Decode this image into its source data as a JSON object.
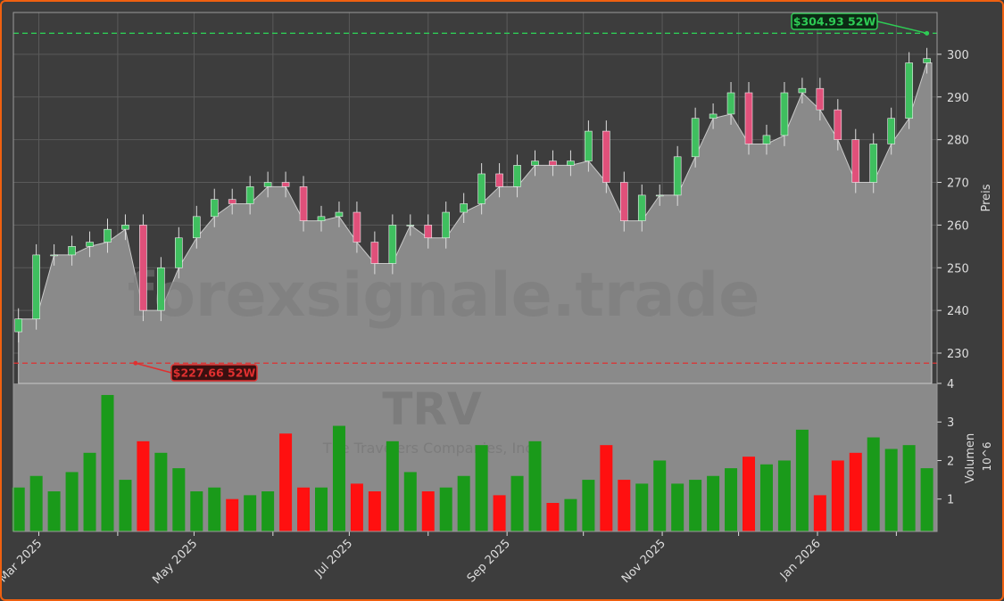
{
  "chart_data": [
    {
      "type": "candlestick",
      "ticker_watermark": "forexsignale.trade",
      "ylabel": "Preis",
      "ylim": [
        222.9,
        309.8
      ],
      "yticks": [
        230,
        240,
        250,
        260,
        270,
        280,
        290,
        300
      ],
      "grid": true,
      "dates": [
        "2025-02-21",
        "2025-02-28",
        "2025-03-07",
        "2025-03-14",
        "2025-03-21",
        "2025-03-28",
        "2025-04-04",
        "2025-04-11",
        "2025-04-18",
        "2025-04-25",
        "2025-05-02",
        "2025-05-09",
        "2025-05-16",
        "2025-05-23",
        "2025-05-30",
        "2025-06-06",
        "2025-06-13",
        "2025-06-20",
        "2025-06-27",
        "2025-07-04",
        "2025-07-11",
        "2025-07-18",
        "2025-07-25",
        "2025-08-01",
        "2025-08-08",
        "2025-08-15",
        "2025-08-22",
        "2025-08-29",
        "2025-09-05",
        "2025-09-12",
        "2025-09-19",
        "2025-09-26",
        "2025-10-03",
        "2025-10-10",
        "2025-10-17",
        "2025-10-24",
        "2025-10-31",
        "2025-11-07",
        "2025-11-14",
        "2025-11-21",
        "2025-11-28",
        "2025-12-05",
        "2025-12-12",
        "2025-12-19",
        "2025-12-26",
        "2026-01-02",
        "2026-01-09",
        "2026-01-16",
        "2026-01-23",
        "2026-01-30",
        "2026-02-06",
        "2026-02-13"
      ],
      "close": [
        238,
        253,
        253,
        255,
        256,
        259,
        260,
        240,
        250,
        257,
        262,
        266,
        265,
        269,
        270,
        269,
        261,
        262,
        263,
        256,
        251,
        260,
        260,
        257,
        263,
        265,
        272,
        269,
        274,
        275,
        274,
        275,
        282,
        270,
        261,
        267,
        267,
        276,
        285,
        286,
        291,
        279,
        281,
        291,
        292,
        287,
        280,
        270,
        279,
        285,
        298,
        299
      ],
      "annotations": [
        {
          "label": "$304.93 52W",
          "value": 304.93,
          "date": "2026-02-13",
          "color": "#2ecc55"
        },
        {
          "label": "$227.66 52W",
          "value": 227.66,
          "date": "2025-04-08",
          "color": "#e03030"
        }
      ],
      "colors": {
        "up": "#22aa22",
        "down": "#ff1010",
        "area": "#8a8a8a",
        "background": "#3d3d3d"
      }
    },
    {
      "type": "bar",
      "title": "TRV",
      "subtitle": "The Travelers Companies, Inc.",
      "ylabel": "Volumen",
      "yunit": "10^6",
      "ylim": [
        0.16,
        4.0
      ],
      "yticks": [
        1,
        2,
        3,
        4
      ],
      "values": [
        1.3,
        1.6,
        1.2,
        1.7,
        2.2,
        3.7,
        1.5,
        2.5,
        2.2,
        1.8,
        1.2,
        1.3,
        1.0,
        1.1,
        1.2,
        2.7,
        1.3,
        1.3,
        2.9,
        1.4,
        1.2,
        2.5,
        1.7,
        1.2,
        1.3,
        1.6,
        2.4,
        1.1,
        1.6,
        2.5,
        0.9,
        1.0,
        1.5,
        2.4,
        1.5,
        1.4,
        2.0,
        1.4,
        1.5,
        1.6,
        1.8,
        2.1,
        1.9,
        2.0,
        2.8,
        1.1,
        2.0,
        2.2,
        2.6,
        2.3,
        2.4,
        1.8
      ]
    }
  ],
  "xaxis": {
    "ticks": [
      "Mar 2025",
      "May 2025",
      "Jul 2025",
      "Sep 2025",
      "Nov 2025",
      "Jan 2026"
    ]
  }
}
